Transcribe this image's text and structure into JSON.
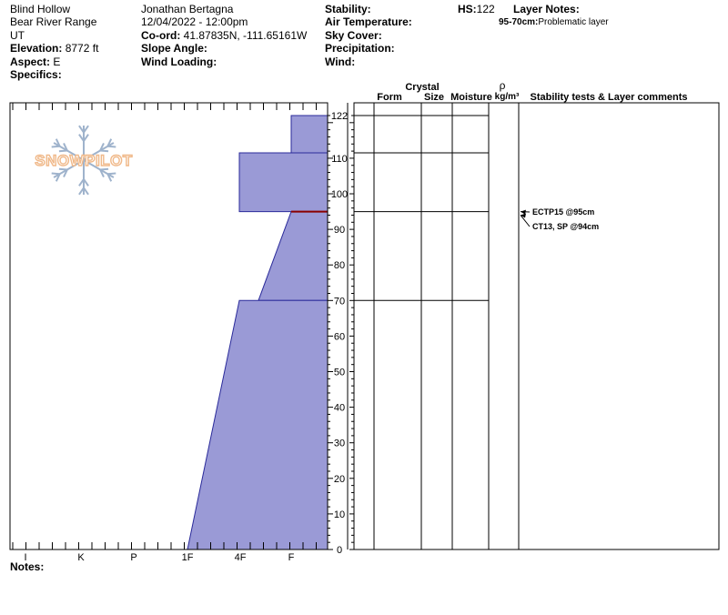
{
  "header": {
    "location": "Blind Hollow",
    "range": "Bear River Range",
    "state": "UT",
    "elevation_label": "Elevation:",
    "elevation_value": "8772 ft",
    "aspect_label": "Aspect:",
    "aspect_value": "E",
    "specifics_label": "Specifics:",
    "observer": "Jonathan Bertagna",
    "datetime": "12/04/2022 - 12:00pm",
    "coord_label": "Co-ord:",
    "coord_value": "41.87835N, -111.65161W",
    "slope_label": "Slope Angle:",
    "wind_loading_label": "Wind Loading:",
    "stability_label": "Stability:",
    "air_temp_label": "Air Temperature:",
    "sky_cover_label": "Sky Cover:",
    "precip_label": "Precipitation:",
    "wind_label": "Wind:",
    "hs_label": "HS:",
    "hs_value": "122",
    "layer_notes_label": "Layer Notes:",
    "layer_note_range": "95-70cm:",
    "layer_note_text": "Problematic layer"
  },
  "logo": {
    "text": "SNOWPILOT",
    "color": "#f0b98a",
    "flake_color": "#9fb3cc"
  },
  "notes_label": "Notes:",
  "columns": {
    "crystal": "Crystal",
    "form": "Form",
    "size": "Size",
    "moisture": "Moisture",
    "rho": "ρ",
    "density": "kg/m³",
    "stability": "Stability tests & Layer comments"
  },
  "chart_data": {
    "type": "area",
    "y_axis": {
      "min": 0,
      "max": 122,
      "ticks": [
        0,
        10,
        20,
        30,
        40,
        50,
        60,
        70,
        80,
        90,
        100,
        110,
        122
      ],
      "unit": "cm"
    },
    "hardness_scale": [
      "I",
      "K",
      "P",
      "1F",
      "4F",
      "F"
    ],
    "layers": [
      {
        "top": 122,
        "bottom": 111.5,
        "hardness_top": "F",
        "hardness_bottom": "F"
      },
      {
        "top": 111.5,
        "bottom": 95,
        "hardness_top": "4F",
        "hardness_bottom": "4F"
      },
      {
        "top": 95,
        "bottom": 70,
        "hardness_top": "F",
        "hardness_bottom": "4F+"
      },
      {
        "top": 70,
        "bottom": 0,
        "hardness_top": "4F",
        "hardness_bottom": "1F"
      }
    ],
    "layer_boundaries": [
      122,
      111.5,
      95,
      70
    ],
    "highlight_boundary": 95,
    "colors": {
      "fill": "#9a9ad6",
      "edge": "#2a2a9a",
      "highlight": "#8b0000"
    },
    "tests": [
      {
        "label": "ECTP15 @95cm",
        "depth": 95
      },
      {
        "label": "CT13, SP @94cm",
        "depth": 94
      }
    ]
  }
}
